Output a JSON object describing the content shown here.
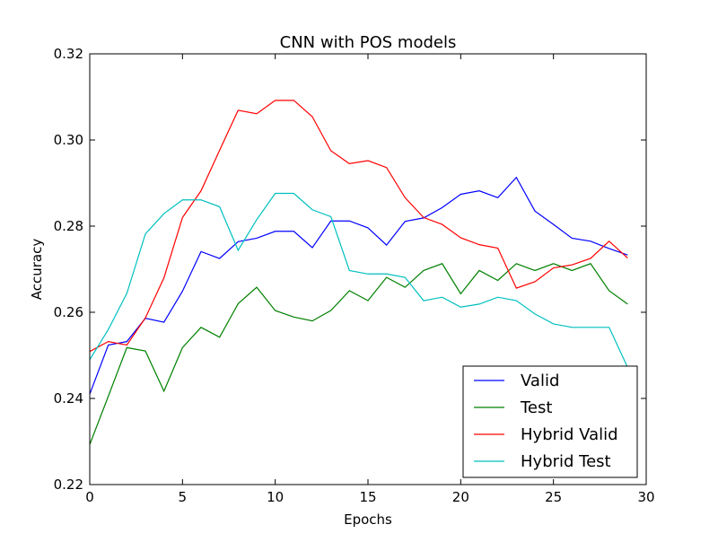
{
  "chart_data": {
    "type": "line",
    "title": "CNN with POS models",
    "xlabel": "Epochs",
    "ylabel": "Accuracy",
    "xlim": [
      0,
      30
    ],
    "ylim": [
      0.22,
      0.32
    ],
    "xticks": [
      0,
      5,
      10,
      15,
      20,
      25,
      30
    ],
    "xtick_labels": [
      "0",
      "5",
      "10",
      "15",
      "20",
      "25",
      "30"
    ],
    "yticks": [
      0.22,
      0.24,
      0.26,
      0.28,
      0.3,
      0.32
    ],
    "ytick_labels": [
      "0.22",
      "0.24",
      "0.26",
      "0.28",
      "0.30",
      "0.32"
    ],
    "grid": false,
    "legend_position": "bottom-right",
    "x": [
      0,
      1,
      2,
      3,
      4,
      5,
      6,
      7,
      8,
      9,
      10,
      11,
      12,
      13,
      14,
      15,
      16,
      17,
      18,
      19,
      20,
      21,
      22,
      23,
      24,
      25,
      26,
      27,
      28,
      29
    ],
    "series": [
      {
        "name": "Valid",
        "color": "#0000ff",
        "values": [
          0.241,
          0.2524,
          0.2532,
          0.2586,
          0.2577,
          0.2649,
          0.2741,
          0.2725,
          0.2764,
          0.2772,
          0.2788,
          0.2788,
          0.275,
          0.2812,
          0.2812,
          0.2796,
          0.2756,
          0.2811,
          0.2819,
          0.2843,
          0.2874,
          0.2882,
          0.2866,
          0.2913,
          0.2835,
          0.2804,
          0.2772,
          0.2765,
          0.2748,
          0.2733
        ]
      },
      {
        "name": "Test",
        "color": "#008000",
        "values": [
          0.2293,
          0.2405,
          0.2518,
          0.251,
          0.2417,
          0.2518,
          0.2565,
          0.2542,
          0.262,
          0.2658,
          0.2604,
          0.2589,
          0.258,
          0.2604,
          0.265,
          0.2627,
          0.2681,
          0.2658,
          0.2697,
          0.2713,
          0.2643,
          0.2697,
          0.2674,
          0.2713,
          0.2697,
          0.2713,
          0.2697,
          0.2713,
          0.265,
          0.2619
        ]
      },
      {
        "name": "Hybrid Valid",
        "color": "#ff0000",
        "values": [
          0.2509,
          0.2532,
          0.2524,
          0.2587,
          0.268,
          0.282,
          0.2882,
          0.2976,
          0.3069,
          0.3061,
          0.3092,
          0.3092,
          0.3054,
          0.2975,
          0.2945,
          0.2952,
          0.2936,
          0.2866,
          0.282,
          0.2804,
          0.2773,
          0.2757,
          0.2749,
          0.2656,
          0.2671,
          0.2703,
          0.271,
          0.2725,
          0.2765,
          0.2726
        ]
      },
      {
        "name": "Hybrid Test",
        "color": "#00bfbf",
        "values": [
          0.249,
          0.256,
          0.2644,
          0.2782,
          0.2829,
          0.2861,
          0.2861,
          0.2845,
          0.2744,
          0.2815,
          0.2876,
          0.2876,
          0.2838,
          0.2822,
          0.2697,
          0.2689,
          0.2689,
          0.2681,
          0.2627,
          0.2635,
          0.2612,
          0.2619,
          0.2635,
          0.2627,
          0.2596,
          0.2573,
          0.2565,
          0.2565,
          0.2565,
          0.2472
        ]
      }
    ]
  }
}
